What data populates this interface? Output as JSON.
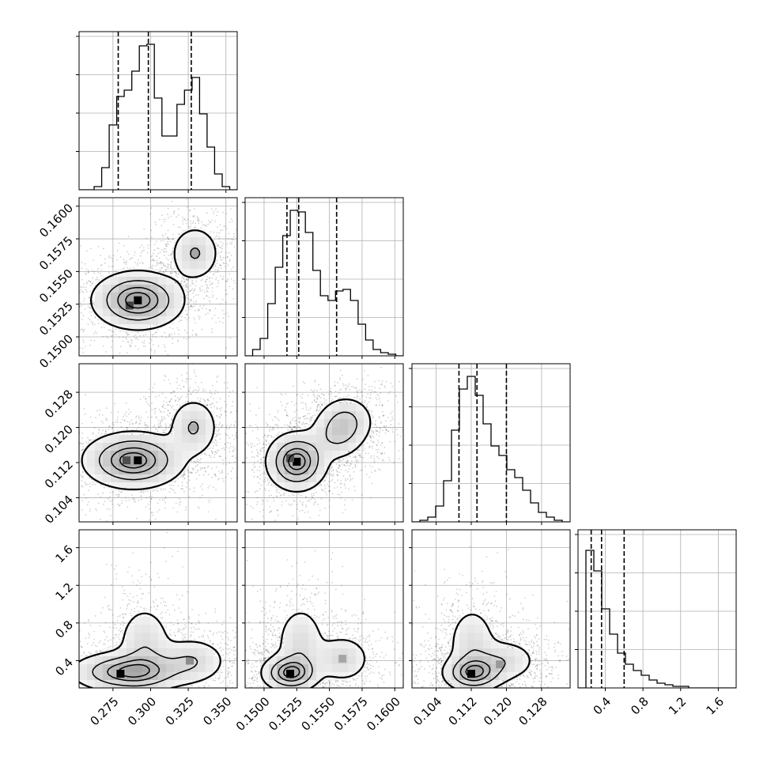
{
  "chart_data": {
    "type": "corner",
    "grid": true,
    "parameters": [
      {
        "index": 0,
        "range": [
          0.2525,
          0.3575
        ],
        "ticks": [
          0.275,
          0.3,
          0.325,
          0.35
        ],
        "tick_labels": [
          "0.275",
          "0.300",
          "0.325",
          "0.350"
        ],
        "quantiles": [
          0.2785,
          0.2985,
          0.327
        ],
        "hist": [
          0,
          0,
          0.02,
          0.14,
          0.41,
          0.59,
          0.63,
          0.75,
          0.91,
          0.92,
          0.58,
          0.34,
          0.34,
          0.54,
          0.63,
          0.71,
          0.48,
          0.27,
          0.1,
          0.02,
          0
        ]
      },
      {
        "index": 1,
        "range": [
          0.14855,
          0.16065
        ],
        "ticks": [
          0.15,
          0.1525,
          0.155,
          0.1575,
          0.16
        ],
        "tick_labels": [
          "0.1500",
          "0.1525",
          "0.1550",
          "0.1575",
          "0.1600"
        ],
        "quantiles": [
          0.15175,
          0.15265,
          0.15555
        ],
        "hist": [
          0,
          0.04,
          0.11,
          0.33,
          0.56,
          0.76,
          0.92,
          0.91,
          0.78,
          0.54,
          0.38,
          0.35,
          0.41,
          0.42,
          0.35,
          0.2,
          0.1,
          0.04,
          0.02,
          0.01,
          0
        ]
      },
      {
        "index": 2,
        "range": [
          0.0985,
          0.1345
        ],
        "ticks": [
          0.104,
          0.112,
          0.12,
          0.128
        ],
        "tick_labels": [
          "0.104",
          "0.112",
          "0.120",
          "0.128"
        ],
        "quantiles": [
          0.1092,
          0.1133,
          0.12
        ],
        "hist": [
          0,
          0.01,
          0.03,
          0.1,
          0.26,
          0.58,
          0.84,
          0.92,
          0.8,
          0.62,
          0.48,
          0.42,
          0.33,
          0.28,
          0.2,
          0.12,
          0.06,
          0.03,
          0.01,
          0
        ]
      },
      {
        "index": 3,
        "range": [
          0.11,
          1.79
        ],
        "ticks": [
          0.4,
          0.8,
          1.2,
          1.6
        ],
        "tick_labels": [
          "0.4",
          "0.8",
          "1.2",
          "1.6"
        ],
        "quantiles": [
          0.25,
          0.36,
          0.6
        ],
        "hist": [
          0,
          0.87,
          0.74,
          0.5,
          0.34,
          0.22,
          0.15,
          0.11,
          0.08,
          0.05,
          0.03,
          0.02,
          0.01,
          0.01,
          0,
          0,
          0,
          0,
          0,
          0
        ]
      }
    ],
    "panels_2d": [
      {
        "x": 0,
        "y": 1,
        "modes": [
          {
            "cx": 0.2915,
            "cy": 0.1528,
            "sx": 0.015,
            "sy": 0.0011,
            "angle": -18,
            "w": 1.0
          },
          {
            "cx": 0.3295,
            "cy": 0.1564,
            "sx": 0.0085,
            "sy": 0.0011,
            "angle": 0,
            "w": 0.42
          }
        ],
        "hot": [
          {
            "x": 0.2915,
            "y": 0.1528,
            "v": 1.0
          },
          {
            "x": 0.286,
            "y": 0.1524,
            "v": 0.75
          },
          {
            "x": 0.3295,
            "y": 0.1564,
            "v": 0.35
          }
        ]
      },
      {
        "x": 0,
        "y": 2,
        "modes": [
          {
            "cx": 0.2885,
            "cy": 0.1125,
            "sx": 0.0165,
            "sy": 0.0032,
            "angle": 0,
            "w": 1.0
          },
          {
            "cx": 0.3285,
            "cy": 0.12,
            "sx": 0.0085,
            "sy": 0.0035,
            "angle": 0,
            "w": 0.42
          }
        ],
        "hot": [
          {
            "x": 0.2915,
            "y": 0.1125,
            "v": 1.0
          },
          {
            "x": 0.284,
            "y": 0.1125,
            "v": 0.7
          },
          {
            "x": 0.3285,
            "y": 0.12,
            "v": 0.32
          }
        ]
      },
      {
        "x": 1,
        "y": 2,
        "modes": [
          {
            "cx": 0.1525,
            "cy": 0.1122,
            "sx": 0.00115,
            "sy": 0.0033,
            "angle": 0,
            "w": 1.0
          },
          {
            "cx": 0.1555,
            "cy": 0.118,
            "sx": 0.0011,
            "sy": 0.003,
            "angle": 0,
            "w": 0.35
          },
          {
            "cx": 0.1563,
            "cy": 0.1215,
            "sx": 0.0011,
            "sy": 0.003,
            "angle": 0,
            "w": 0.42
          }
        ],
        "hot": [
          {
            "x": 0.1525,
            "y": 0.1122,
            "v": 1.0
          },
          {
            "x": 0.152,
            "y": 0.113,
            "v": 0.7
          }
        ]
      },
      {
        "x": 0,
        "y": 3,
        "modes": [
          {
            "cx": 0.286,
            "cy": 0.28,
            "sx": 0.019,
            "sy": 0.11,
            "angle": 0,
            "w": 1.0
          },
          {
            "cx": 0.296,
            "cy": 0.58,
            "sx": 0.0095,
            "sy": 0.22,
            "angle": 0,
            "w": 0.38
          },
          {
            "cx": 0.327,
            "cy": 0.4,
            "sx": 0.0125,
            "sy": 0.13,
            "angle": 0,
            "w": 0.42
          }
        ],
        "hot": [
          {
            "x": 0.28,
            "y": 0.26,
            "v": 1.0
          },
          {
            "x": 0.326,
            "y": 0.4,
            "v": 0.45
          }
        ]
      },
      {
        "x": 1,
        "y": 3,
        "modes": [
          {
            "cx": 0.152,
            "cy": 0.27,
            "sx": 0.0011,
            "sy": 0.1,
            "angle": 0,
            "w": 1.0
          },
          {
            "cx": 0.1528,
            "cy": 0.58,
            "sx": 0.001,
            "sy": 0.22,
            "angle": 0,
            "w": 0.38
          },
          {
            "cx": 0.156,
            "cy": 0.42,
            "sx": 0.0011,
            "sy": 0.13,
            "angle": 0,
            "w": 0.42
          }
        ],
        "hot": [
          {
            "x": 0.152,
            "y": 0.26,
            "v": 1.0
          },
          {
            "x": 0.156,
            "y": 0.42,
            "v": 0.35
          }
        ]
      },
      {
        "x": 2,
        "y": 3,
        "modes": [
          {
            "cx": 0.1125,
            "cy": 0.27,
            "sx": 0.0035,
            "sy": 0.1,
            "angle": 0,
            "w": 1.0
          },
          {
            "cx": 0.1122,
            "cy": 0.58,
            "sx": 0.003,
            "sy": 0.22,
            "angle": 0,
            "w": 0.38
          },
          {
            "cx": 0.1195,
            "cy": 0.4,
            "sx": 0.004,
            "sy": 0.12,
            "angle": 0,
            "w": 0.4
          }
        ],
        "hot": [
          {
            "x": 0.112,
            "y": 0.26,
            "v": 1.0
          },
          {
            "x": 0.1185,
            "y": 0.36,
            "v": 0.4
          }
        ]
      }
    ],
    "contour_levels": [
      0.118,
      0.393,
      0.675,
      0.864
    ]
  }
}
